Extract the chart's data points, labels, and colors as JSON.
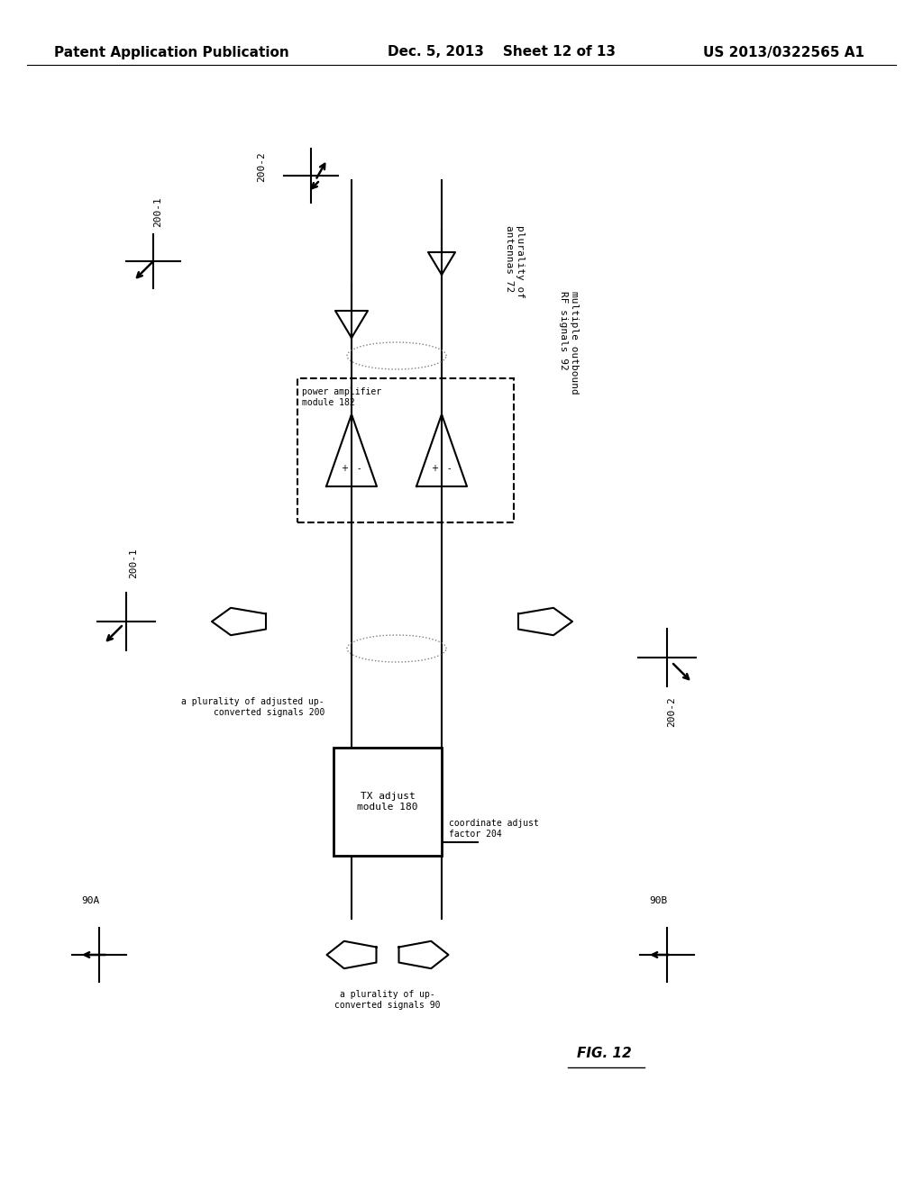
{
  "bg_color": "#ffffff",
  "header_left": "Patent Application Publication",
  "header_mid": "Dec. 5, 2013    Sheet 12 of 13",
  "header_right": "US 2013/0322565 A1",
  "fig_label": "FIG. 12",
  "title_fontsize": 11,
  "body_fontsize": 9,
  "small_fontsize": 8
}
